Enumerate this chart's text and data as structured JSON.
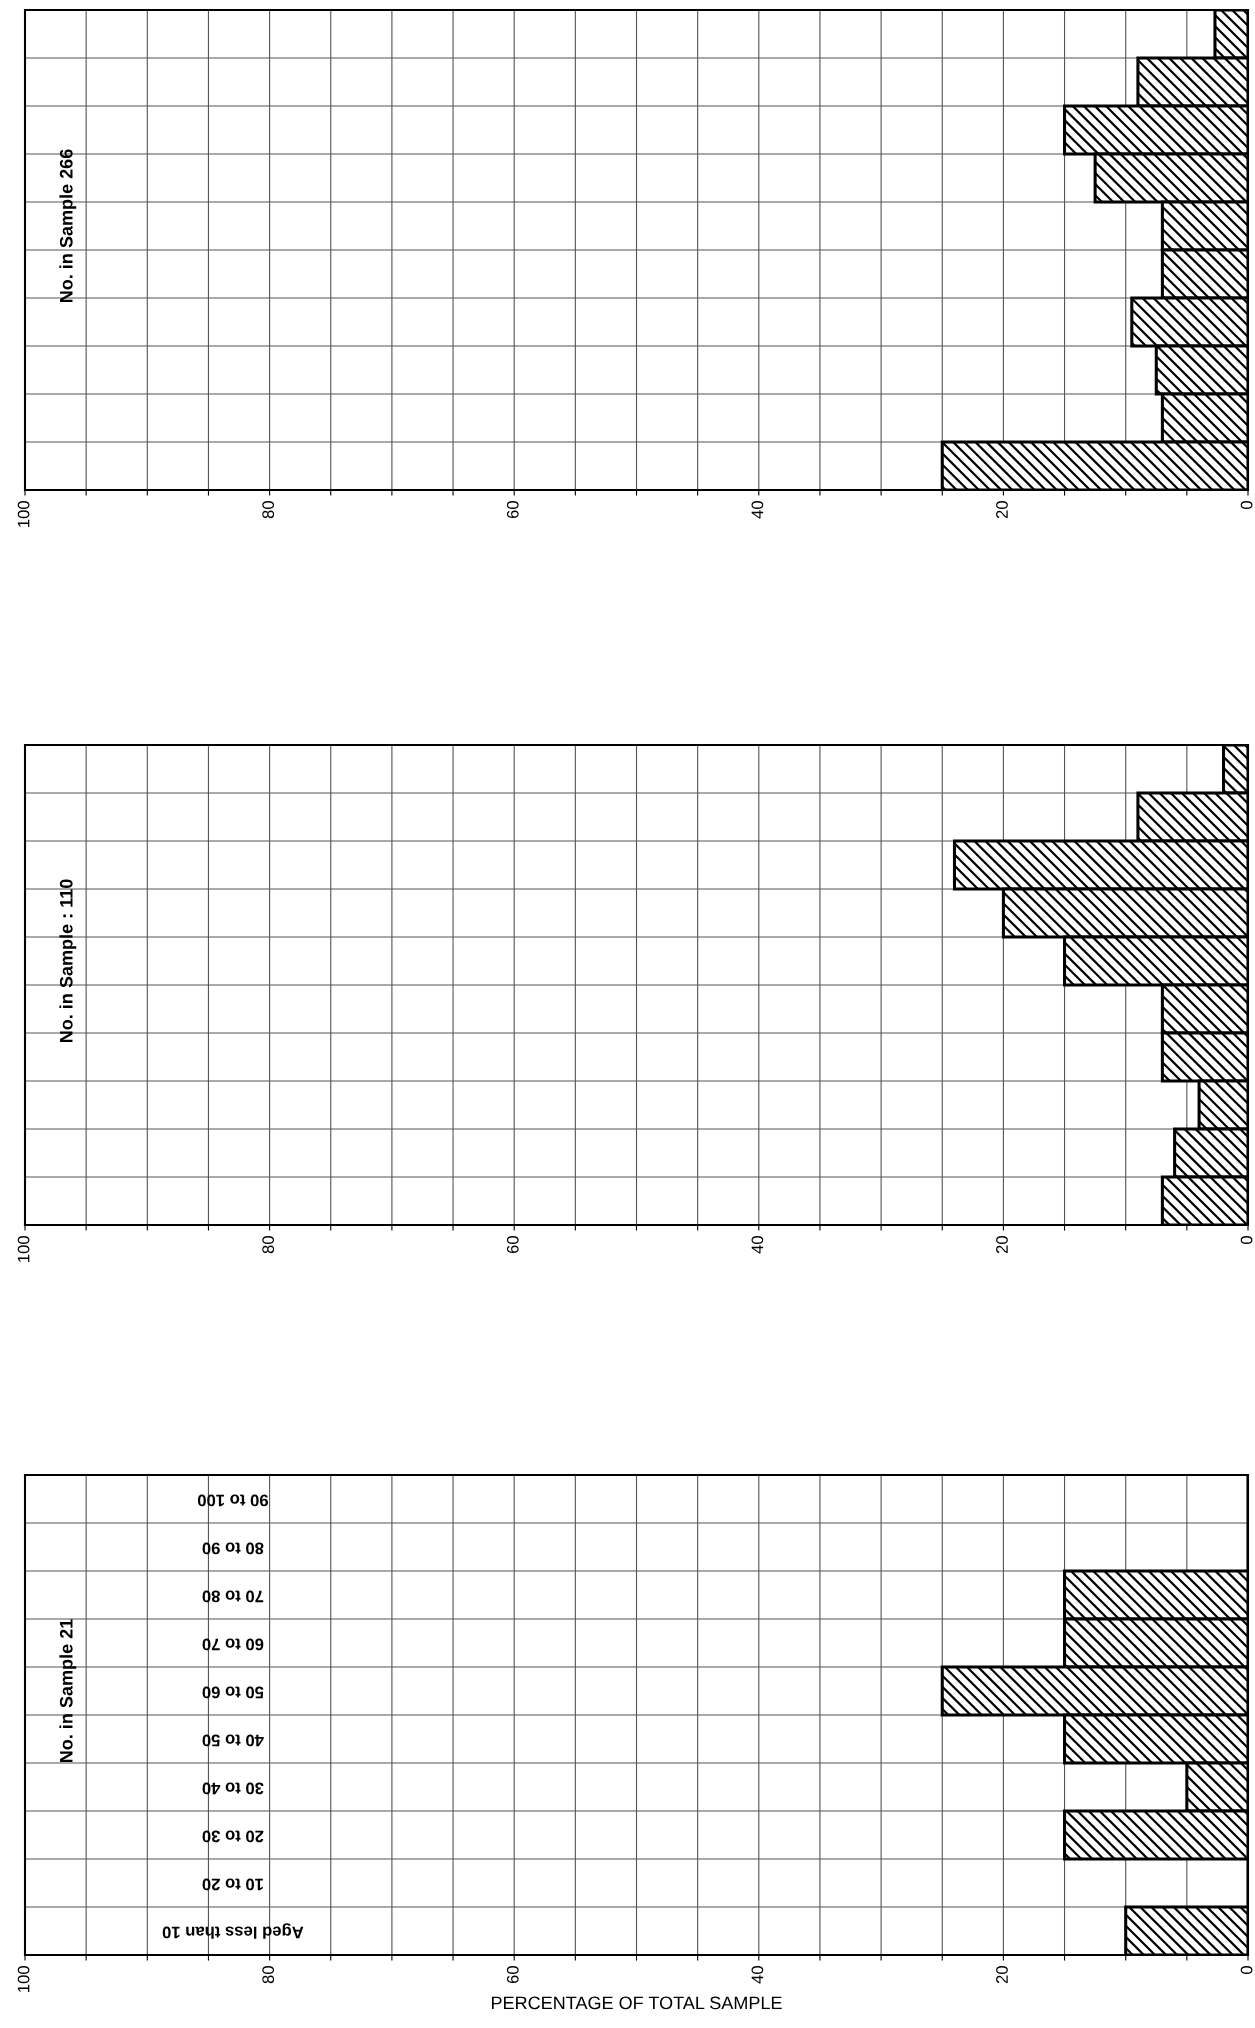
{
  "chart_data": [
    {
      "type": "bar",
      "orientation": "horizontal",
      "title": "No. in Sample 21",
      "xlabel": "PERCENTAGE OF TOTAL SAMPLE",
      "categories": [
        "90 to 100",
        "80 to 90",
        "70 to 80",
        "60 to 70",
        "50 to 60",
        "40 to 50",
        "30 to 40",
        "20 to 30",
        "10 to 20",
        "Aged less than 10"
      ],
      "series": [
        {
          "color": "#000000",
          "values": [
            0,
            0,
            15,
            15,
            25,
            15,
            5,
            15,
            0,
            10
          ]
        }
      ],
      "xlim": [
        100,
        0
      ],
      "xticks": [
        0,
        {
          "value": 5,
          "label": null
        },
        {
          "value": 10,
          "label": null
        },
        {
          "value": 15,
          "label": null
        },
        20,
        {
          "value": 25,
          "label": null
        },
        {
          "value": 30,
          "label": null
        },
        {
          "value": 35,
          "label": null
        },
        40,
        {
          "value": 45,
          "label": null
        },
        {
          "value": 50,
          "label": null
        },
        {
          "value": 55,
          "label": null
        },
        60,
        {
          "value": 65,
          "label": null
        },
        {
          "value": 70,
          "label": null
        },
        {
          "value": 75,
          "label": null
        },
        80,
        {
          "value": 85,
          "label": null
        },
        {
          "value": 90,
          "label": null
        },
        {
          "value": 95,
          "label": null
        },
        100
      ],
      "grid": true
    },
    {
      "type": "bar",
      "orientation": "horizontal",
      "title": "No. in Sample : 110",
      "categories": [
        null,
        null,
        null,
        null,
        null,
        null,
        null,
        null,
        null,
        null
      ],
      "series": [
        {
          "color": "#000000",
          "values": [
            2,
            9,
            24,
            20,
            15,
            7,
            7,
            4,
            6,
            7
          ]
        }
      ],
      "xlim": [
        100,
        0
      ],
      "xticks": [
        0,
        {
          "value": 5,
          "label": null
        },
        {
          "value": 10,
          "label": null
        },
        {
          "value": 15,
          "label": null
        },
        20,
        {
          "value": 25,
          "label": null
        },
        {
          "value": 30,
          "label": null
        },
        {
          "value": 35,
          "label": null
        },
        40,
        {
          "value": 45,
          "label": null
        },
        {
          "value": 50,
          "label": null
        },
        {
          "value": 55,
          "label": null
        },
        60,
        {
          "value": 65,
          "label": null
        },
        {
          "value": 70,
          "label": null
        },
        {
          "value": 75,
          "label": null
        },
        80,
        {
          "value": 85,
          "label": null
        },
        {
          "value": 90,
          "label": null
        },
        {
          "value": 95,
          "label": null
        },
        100
      ],
      "grid": true
    },
    {
      "type": "bar",
      "orientation": "horizontal",
      "title": "No. in Sample 266",
      "categories": [
        null,
        null,
        null,
        null,
        null,
        null,
        null,
        null,
        null,
        null
      ],
      "series": [
        {
          "color": "#000000",
          "values": [
            2.7,
            9,
            15,
            12.5,
            7,
            7,
            9.5,
            7.5,
            7,
            25
          ]
        }
      ],
      "xlim": [
        100,
        0
      ],
      "xticks": [
        0,
        {
          "value": 5,
          "label": null
        },
        {
          "value": 10,
          "label": null
        },
        {
          "value": 15,
          "label": null
        },
        20,
        {
          "value": 25,
          "label": null
        },
        {
          "value": 30,
          "label": null
        },
        {
          "value": 35,
          "label": null
        },
        40,
        {
          "value": 45,
          "label": null
        },
        {
          "value": 50,
          "label": null
        },
        {
          "value": 55,
          "label": null
        },
        60,
        {
          "value": 65,
          "label": null
        },
        {
          "value": 70,
          "label": null
        },
        {
          "value": 75,
          "label": null
        },
        80,
        {
          "value": 85,
          "label": null
        },
        {
          "value": 90,
          "label": null
        },
        {
          "value": 95,
          "label": null
        },
        100
      ],
      "grid": true
    }
  ]
}
